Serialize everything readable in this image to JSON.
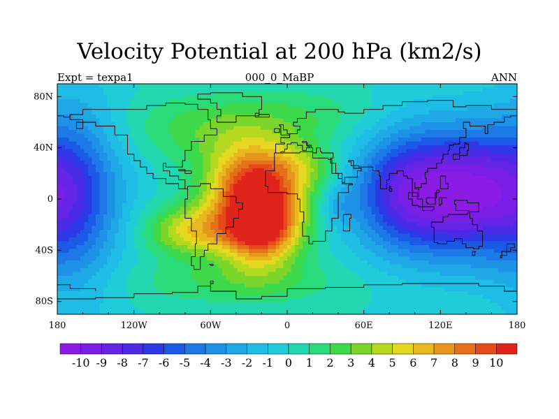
{
  "chart_data": {
    "type": "heatmap",
    "title": "Velocity Potential at 200 hPa (km2/s)",
    "subtitle_left": "Expt = texpa1",
    "subtitle_center": "000_0_MaBP",
    "subtitle_right": "ANN",
    "x_range": [
      -180,
      180
    ],
    "y_range": [
      -90,
      90
    ],
    "x_ticks": [
      {
        "value": -180,
        "label": "180"
      },
      {
        "value": -120,
        "label": "120W"
      },
      {
        "value": -60,
        "label": "60W"
      },
      {
        "value": 0,
        "label": "0"
      },
      {
        "value": 60,
        "label": "60E"
      },
      {
        "value": 120,
        "label": "120E"
      },
      {
        "value": 180,
        "label": "180"
      }
    ],
    "y_ticks": [
      {
        "value": 80,
        "label": "80N"
      },
      {
        "value": 40,
        "label": "40N"
      },
      {
        "value": 0,
        "label": "0"
      },
      {
        "value": -40,
        "label": "40S"
      },
      {
        "value": -80,
        "label": "80S"
      }
    ],
    "colorbar": {
      "levels": [
        "-10",
        "-9",
        "-8",
        "-7",
        "-6",
        "-5",
        "-4",
        "-3",
        "-2",
        "-1",
        "0",
        "1",
        "2",
        "3",
        "4",
        "5",
        "6",
        "7",
        "8",
        "9",
        "10"
      ],
      "min": -10.5,
      "max": 10.5,
      "colors": [
        "#8a1ce6",
        "#7a1ee6",
        "#6624e6",
        "#4b2be6",
        "#2d39e6",
        "#1b5ae6",
        "#1c79e6",
        "#1d92e6",
        "#1ea8e6",
        "#1fbde6",
        "#20ccd9",
        "#22d6b0",
        "#2adb7a",
        "#3ed94a",
        "#7ad62a",
        "#b5d91e",
        "#e5d820",
        "#e8b81e",
        "#e6951c",
        "#e6701a",
        "#e64a18",
        "#e0241c"
      ]
    },
    "field_centers": [
      {
        "lon": 135,
        "lat": 5,
        "value": -10,
        "spread_lon": 45,
        "spread_lat": 35
      },
      {
        "lon": 85,
        "lat": 5,
        "value": -3,
        "spread_lon": 25,
        "spread_lat": 30
      },
      {
        "lon": -165,
        "lat": 0,
        "value": -3.5,
        "spread_lon": 25,
        "spread_lat": 60
      },
      {
        "lon": -20,
        "lat": -20,
        "value": 10,
        "spread_lon": 22,
        "spread_lat": 22
      },
      {
        "lon": -30,
        "lat": 5,
        "value": 5.5,
        "spread_lon": 25,
        "spread_lat": 25
      },
      {
        "lon": -75,
        "lat": -25,
        "value": 5,
        "spread_lon": 25,
        "spread_lat": 14
      },
      {
        "lon": -15,
        "lat": 22,
        "value": 3.5,
        "spread_lon": 30,
        "spread_lat": 18
      },
      {
        "lon": 15,
        "lat": 25,
        "value": 1.5,
        "spread_lon": 20,
        "spread_lat": 12
      },
      {
        "lon": -40,
        "lat": -65,
        "value": 2,
        "spread_lon": 60,
        "spread_lat": 12
      },
      {
        "lon": -60,
        "lat": 55,
        "value": 2.5,
        "spread_lon": 45,
        "spread_lat": 18
      },
      {
        "lon": 40,
        "lat": -5,
        "value": -1.5,
        "spread_lon": 10,
        "spread_lat": 10
      },
      {
        "lon": 15,
        "lat": 65,
        "value": 1.5,
        "spread_lon": 40,
        "spread_lat": 15
      }
    ],
    "coastlines": [
      [
        [
          -170,
          66
        ],
        [
          -160,
          70
        ],
        [
          -140,
          70
        ],
        [
          -125,
          70
        ],
        [
          -110,
          73
        ],
        [
          -95,
          75
        ],
        [
          -80,
          74
        ],
        [
          -70,
          70
        ],
        [
          -62,
          62
        ],
        [
          -60,
          55
        ],
        [
          -55,
          50
        ],
        [
          -65,
          45
        ],
        [
          -75,
          38
        ],
        [
          -80,
          30
        ],
        [
          -82,
          25
        ],
        [
          -95,
          28
        ],
        [
          -97,
          22
        ],
        [
          -92,
          18
        ],
        [
          -85,
          15
        ],
        [
          -80,
          8
        ],
        [
          -78,
          8
        ],
        [
          -85,
          12
        ],
        [
          -95,
          16
        ],
        [
          -105,
          20
        ],
        [
          -110,
          25
        ],
        [
          -115,
          30
        ],
        [
          -120,
          35
        ],
        [
          -125,
          42
        ],
        [
          -125,
          50
        ],
        [
          -135,
          57
        ],
        [
          -150,
          60
        ],
        [
          -165,
          55
        ],
        [
          -160,
          62
        ],
        [
          -170,
          66
        ]
      ],
      [
        [
          -78,
          10
        ],
        [
          -68,
          12
        ],
        [
          -60,
          8
        ],
        [
          -50,
          2
        ],
        [
          -40,
          -3
        ],
        [
          -35,
          -8
        ],
        [
          -38,
          -15
        ],
        [
          -42,
          -22
        ],
        [
          -48,
          -27
        ],
        [
          -55,
          -35
        ],
        [
          -62,
          -40
        ],
        [
          -65,
          -45
        ],
        [
          -68,
          -55
        ],
        [
          -73,
          -52
        ],
        [
          -75,
          -45
        ],
        [
          -72,
          -35
        ],
        [
          -71,
          -25
        ],
        [
          -75,
          -15
        ],
        [
          -80,
          -5
        ],
        [
          -80,
          0
        ],
        [
          -78,
          10
        ]
      ],
      [
        [
          -10,
          36
        ],
        [
          -5,
          36
        ],
        [
          10,
          37
        ],
        [
          20,
          32
        ],
        [
          32,
          31
        ],
        [
          35,
          28
        ],
        [
          38,
          20
        ],
        [
          43,
          12
        ],
        [
          51,
          11
        ],
        [
          48,
          5
        ],
        [
          40,
          -5
        ],
        [
          40,
          -15
        ],
        [
          35,
          -25
        ],
        [
          30,
          -33
        ],
        [
          20,
          -35
        ],
        [
          17,
          -29
        ],
        [
          12,
          -18
        ],
        [
          13,
          -10
        ],
        [
          10,
          0
        ],
        [
          8,
          4
        ],
        [
          0,
          5
        ],
        [
          -10,
          5
        ],
        [
          -15,
          10
        ],
        [
          -17,
          15
        ],
        [
          -17,
          22
        ],
        [
          -10,
          30
        ],
        [
          -10,
          36
        ]
      ],
      [
        [
          -10,
          36
        ],
        [
          -9,
          43
        ],
        [
          -2,
          44
        ],
        [
          -5,
          48
        ],
        [
          2,
          51
        ],
        [
          8,
          54
        ],
        [
          10,
          57
        ],
        [
          5,
          60
        ],
        [
          8,
          63
        ],
        [
          15,
          68
        ],
        [
          22,
          70
        ],
        [
          30,
          70
        ],
        [
          40,
          68
        ],
        [
          45,
          67
        ],
        [
          60,
          70
        ],
        [
          75,
          73
        ],
        [
          90,
          76
        ],
        [
          110,
          77
        ],
        [
          130,
          72
        ],
        [
          140,
          73
        ],
        [
          160,
          70
        ],
        [
          170,
          70
        ],
        [
          180,
          69
        ]
      ],
      [
        [
          -180,
          65
        ],
        [
          -175,
          64
        ],
        [
          -170,
          66
        ]
      ],
      [
        [
          180,
          65
        ],
        [
          175,
          64
        ],
        [
          170,
          60
        ],
        [
          162,
          58
        ],
        [
          157,
          51
        ],
        [
          155,
          57
        ],
        [
          143,
          60
        ],
        [
          138,
          55
        ],
        [
          140,
          48
        ],
        [
          135,
          43
        ],
        [
          130,
          42
        ],
        [
          127,
          38
        ],
        [
          126,
          35
        ],
        [
          122,
          31
        ],
        [
          121,
          28
        ],
        [
          117,
          24
        ],
        [
          110,
          21
        ],
        [
          108,
          16
        ],
        [
          109,
          12
        ],
        [
          105,
          9
        ],
        [
          100,
          13
        ],
        [
          100,
          8
        ],
        [
          103,
          2
        ],
        [
          98,
          8
        ],
        [
          98,
          16
        ],
        [
          94,
          18
        ],
        [
          91,
          22
        ],
        [
          86,
          20
        ],
        [
          80,
          15
        ],
        [
          78,
          8
        ],
        [
          73,
          18
        ],
        [
          72,
          22
        ],
        [
          67,
          25
        ],
        [
          57,
          25
        ],
        [
          56,
          26
        ],
        [
          50,
          29
        ],
        [
          48,
          30
        ],
        [
          52,
          24
        ],
        [
          56,
          24
        ],
        [
          58,
          22
        ],
        [
          55,
          17
        ],
        [
          45,
          13
        ],
        [
          43,
          16
        ],
        [
          40,
          20
        ],
        [
          35,
          28
        ],
        [
          34,
          32
        ],
        [
          36,
          36
        ],
        [
          30,
          36
        ],
        [
          27,
          37
        ],
        [
          26,
          40
        ],
        [
          23,
          39
        ],
        [
          23,
          36
        ],
        [
          20,
          40
        ],
        [
          19,
          42
        ],
        [
          15,
          45
        ],
        [
          12,
          44
        ],
        [
          16,
          41
        ],
        [
          18,
          40
        ],
        [
          15,
          38
        ],
        [
          12,
          42
        ],
        [
          8,
          44
        ],
        [
          3,
          43
        ],
        [
          0,
          39
        ],
        [
          -2,
          37
        ],
        [
          -5,
          36
        ],
        [
          -10,
          36
        ]
      ],
      [
        [
          113,
          -22
        ],
        [
          115,
          -34
        ],
        [
          118,
          -35
        ],
        [
          125,
          -33
        ],
        [
          131,
          -31
        ],
        [
          137,
          -35
        ],
        [
          140,
          -38
        ],
        [
          146,
          -39
        ],
        [
          150,
          -37
        ],
        [
          153,
          -32
        ],
        [
          153,
          -25
        ],
        [
          149,
          -20
        ],
        [
          145,
          -15
        ],
        [
          143,
          -11
        ],
        [
          141,
          -12
        ],
        [
          136,
          -12
        ],
        [
          130,
          -12
        ],
        [
          126,
          -14
        ],
        [
          122,
          -18
        ],
        [
          113,
          -22
        ]
      ],
      [
        [
          -180,
          -78
        ],
        [
          -150,
          -77
        ],
        [
          -120,
          -74
        ],
        [
          -90,
          -73
        ],
        [
          -70,
          -68
        ],
        [
          -60,
          -64
        ],
        [
          -58,
          -66
        ],
        [
          -60,
          -72
        ],
        [
          -40,
          -78
        ],
        [
          -20,
          -76
        ],
        [
          0,
          -70
        ],
        [
          30,
          -69
        ],
        [
          60,
          -67
        ],
        [
          90,
          -66
        ],
        [
          120,
          -66
        ],
        [
          150,
          -68
        ],
        [
          170,
          -72
        ],
        [
          180,
          -78
        ]
      ],
      [
        [
          -55,
          60
        ],
        [
          -45,
          60
        ],
        [
          -40,
          65
        ],
        [
          -22,
          70
        ],
        [
          -20,
          80
        ],
        [
          -35,
          83
        ],
        [
          -60,
          82
        ],
        [
          -70,
          78
        ],
        [
          -60,
          75
        ],
        [
          -55,
          70
        ],
        [
          -52,
          65
        ],
        [
          -55,
          60
        ]
      ],
      [
        [
          -25,
          64
        ],
        [
          -14,
          64
        ],
        [
          -14,
          66
        ],
        [
          -22,
          67
        ],
        [
          -25,
          64
        ]
      ],
      [
        [
          -5,
          50
        ],
        [
          2,
          51
        ],
        [
          0,
          54
        ],
        [
          -3,
          58
        ],
        [
          -6,
          57
        ],
        [
          -5,
          50
        ]
      ],
      [
        [
          -10,
          52
        ],
        [
          -6,
          52
        ],
        [
          -6,
          55
        ],
        [
          -10,
          54
        ],
        [
          -10,
          52
        ]
      ],
      [
        [
          130,
          31
        ],
        [
          135,
          34
        ],
        [
          141,
          38
        ],
        [
          142,
          43
        ],
        [
          140,
          44
        ],
        [
          139,
          40
        ],
        [
          135,
          35
        ],
        [
          130,
          31
        ]
      ],
      [
        [
          95,
          5
        ],
        [
          102,
          0
        ],
        [
          106,
          -6
        ],
        [
          103,
          -5
        ],
        [
          98,
          0
        ],
        [
          95,
          5
        ]
      ],
      [
        [
          106,
          -6
        ],
        [
          115,
          -8
        ],
        [
          114,
          -9
        ],
        [
          106,
          -7
        ],
        [
          106,
          -6
        ]
      ],
      [
        [
          109,
          1
        ],
        [
          117,
          7
        ],
        [
          119,
          5
        ],
        [
          116,
          -4
        ],
        [
          110,
          -3
        ],
        [
          109,
          1
        ]
      ],
      [
        [
          119,
          1
        ],
        [
          125,
          1
        ],
        [
          121,
          -4
        ],
        [
          120,
          -5
        ],
        [
          119,
          1
        ]
      ],
      [
        [
          131,
          -1
        ],
        [
          141,
          -3
        ],
        [
          150,
          -10
        ],
        [
          142,
          -9
        ],
        [
          132,
          -4
        ],
        [
          131,
          -1
        ]
      ],
      [
        [
          120,
          18
        ],
        [
          122,
          18
        ],
        [
          124,
          12
        ],
        [
          126,
          8
        ],
        [
          122,
          8
        ],
        [
          120,
          14
        ],
        [
          120,
          18
        ]
      ],
      [
        [
          44,
          -12
        ],
        [
          50,
          -15
        ],
        [
          49,
          -25
        ],
        [
          44,
          -24
        ],
        [
          44,
          -12
        ]
      ],
      [
        [
          145,
          -41
        ],
        [
          148,
          -41
        ],
        [
          147,
          -44
        ],
        [
          145,
          -41
        ]
      ],
      [
        [
          172,
          -35
        ],
        [
          178,
          -38
        ],
        [
          175,
          -41
        ],
        [
          168,
          -46
        ],
        [
          167,
          -44
        ],
        [
          172,
          -35
        ]
      ],
      [
        [
          80,
          6
        ],
        [
          82,
          8
        ],
        [
          81,
          10
        ],
        [
          80,
          6
        ]
      ],
      [
        [
          -85,
          22
        ],
        [
          -75,
          20
        ],
        [
          -80,
          23
        ],
        [
          -85,
          22
        ]
      ],
      [
        [
          -180,
          -67
        ],
        [
          -170,
          -70
        ],
        [
          -150,
          -72
        ]
      ],
      [
        [
          -60,
          -52
        ],
        [
          -58,
          -51
        ],
        [
          -61,
          -51
        ],
        [
          -60,
          -52
        ]
      ]
    ]
  }
}
